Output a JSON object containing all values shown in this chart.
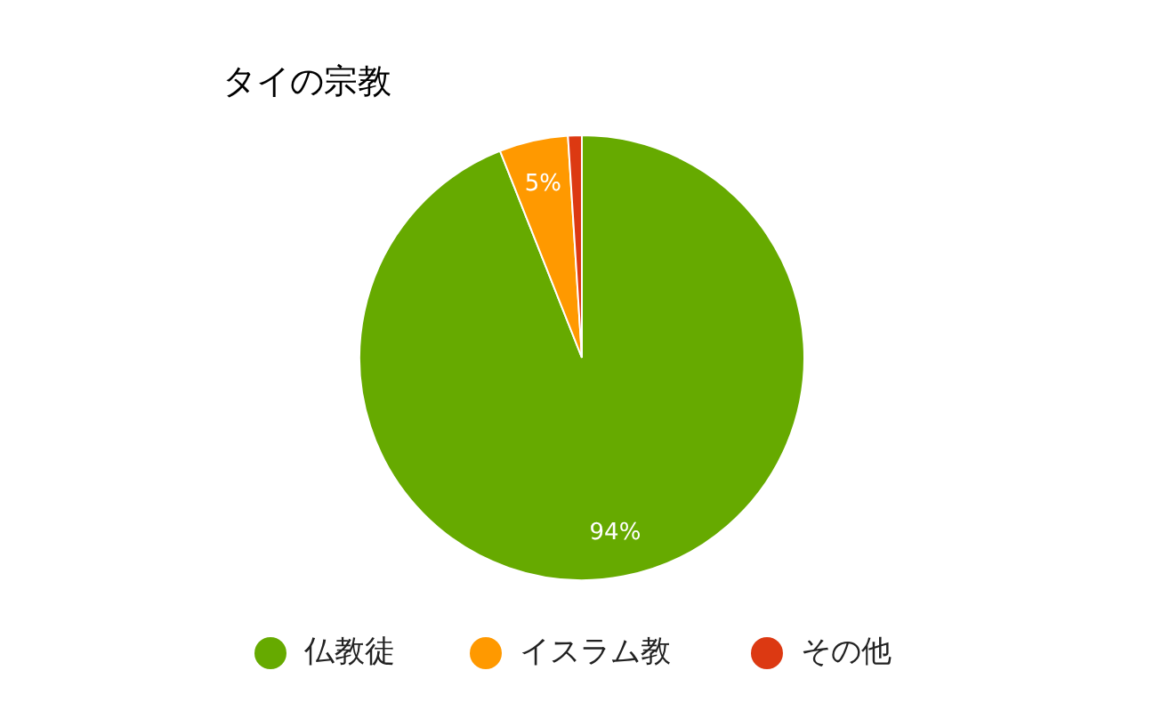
{
  "chart_data": {
    "type": "pie",
    "title": "タイの宗教",
    "categories": [
      "仏教徒",
      "イスラム教",
      "その他"
    ],
    "values": [
      94,
      5,
      1
    ],
    "value_labels": [
      "94%",
      "5%",
      null
    ],
    "colors": [
      "#66aa00",
      "#ff9900",
      "#dc3912"
    ],
    "legend": "bottom"
  }
}
